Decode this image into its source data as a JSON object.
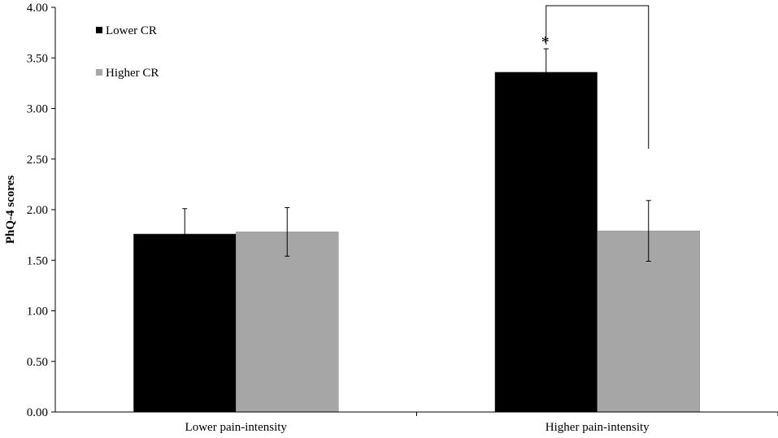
{
  "chart_data": {
    "type": "bar",
    "categories": [
      "Lower pain-intensity",
      "Higher pain-intensity"
    ],
    "series": [
      {
        "name": "Lower CR",
        "values": [
          1.76,
          3.36
        ],
        "error": [
          0.25,
          0.23
        ],
        "color": "#000000"
      },
      {
        "name": "Higher CR",
        "values": [
          1.78,
          1.79
        ],
        "error": [
          0.24,
          0.3
        ],
        "color": "#a6a6a6"
      }
    ],
    "ylabel": "PhQ-4 scores",
    "ylim": [
      0,
      4
    ],
    "yticks": [
      "0.00",
      "0.50",
      "1.00",
      "1.50",
      "2.00",
      "2.50",
      "3.00",
      "3.50",
      "4.00"
    ],
    "legend_position": "top-left",
    "grid": false,
    "annotation": {
      "text": "*",
      "category_index": 1
    }
  }
}
